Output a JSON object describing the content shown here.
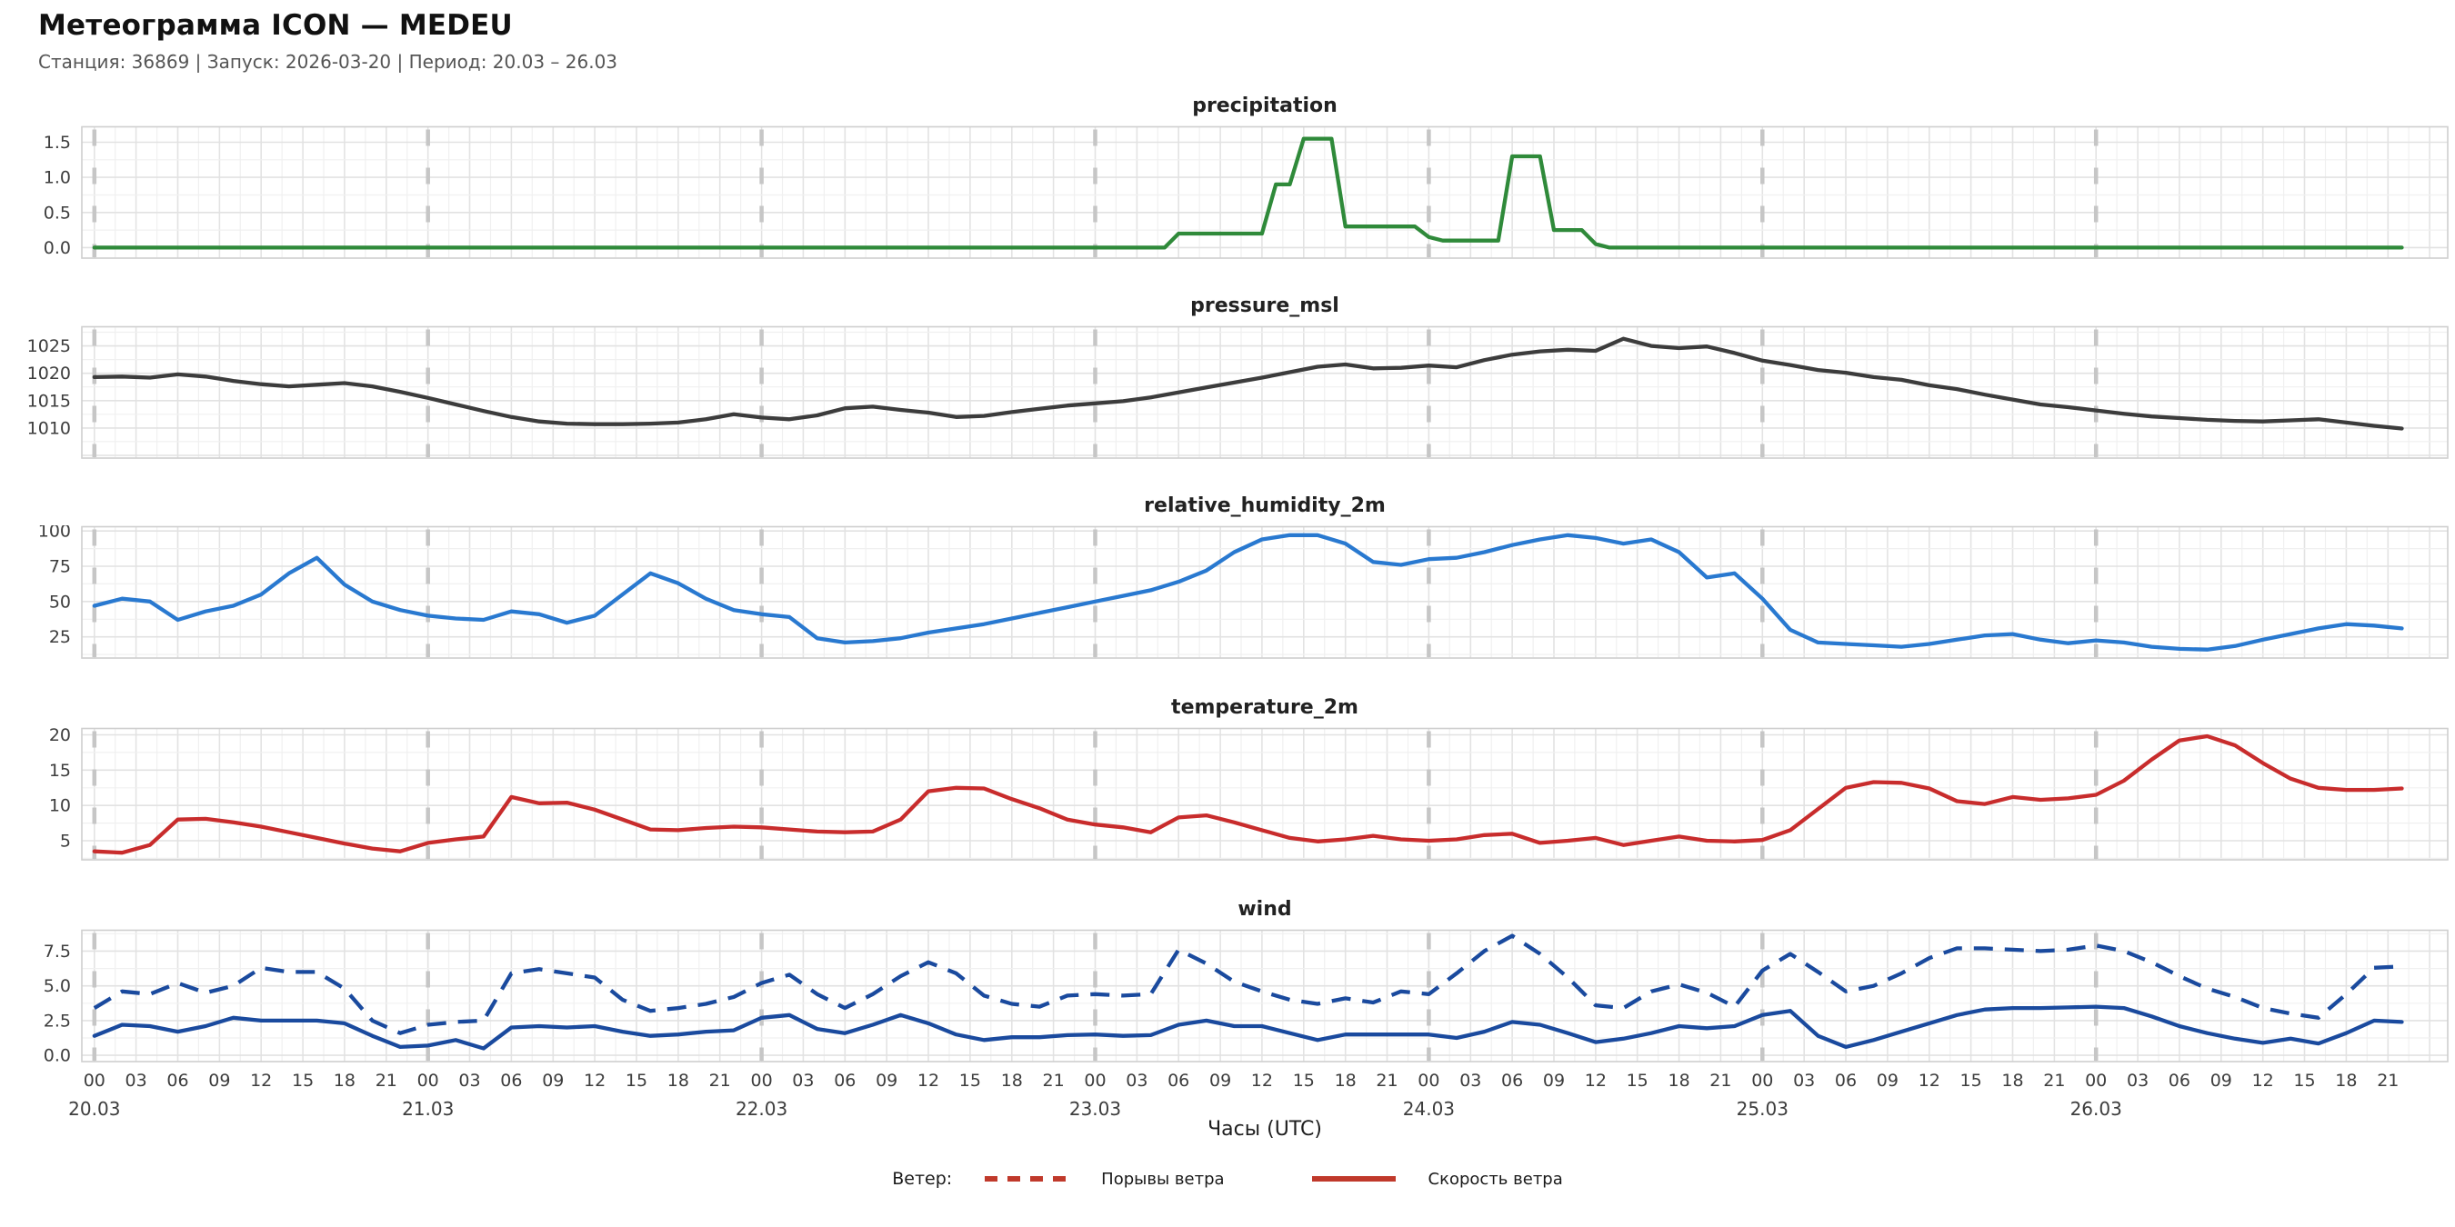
{
  "header": {
    "title": "Метеограмма ICON — MEDEU",
    "subtitle": "Станция: 36869  | Запуск: 2026-03-20  | Период: 20.03 – 26.03"
  },
  "legend": {
    "label": "Ветер:",
    "items": [
      {
        "name": "Порывы ветра",
        "style": "dashed",
        "color": "#c0392b"
      },
      {
        "name": "Скорость ветра",
        "style": "solid",
        "color": "#c0392b"
      }
    ]
  },
  "chart_data": {
    "type": "line",
    "xlabel": "Часы (UTC)",
    "grid": true,
    "xaxis": {
      "hour_labels": [
        "00",
        "03",
        "06",
        "09",
        "12",
        "15",
        "18",
        "21"
      ],
      "day_labels": [
        "20.03",
        "21.03",
        "22.03",
        "23.03",
        "24.03",
        "25.03",
        "26.03"
      ],
      "tick_step_hours": 3,
      "day_line_color": "#c6c6c6"
    },
    "panels": [
      {
        "id": "precipitation",
        "title": "precipitation",
        "ticks": [
          0.0,
          0.5,
          1.0,
          1.5
        ],
        "tick_labels": [
          "0.0",
          "0.5",
          "1.0",
          "1.5"
        ],
        "ylim": [
          -0.15,
          1.72
        ],
        "series": [
          {
            "name": "precipitation",
            "style": "solid",
            "color": "#2f8a3a",
            "step_hours": 1,
            "values": [
              0,
              0,
              0,
              0,
              0,
              0,
              0,
              0,
              0,
              0,
              0,
              0,
              0,
              0,
              0,
              0,
              0,
              0,
              0,
              0,
              0,
              0,
              0,
              0,
              0,
              0,
              0,
              0,
              0,
              0,
              0,
              0,
              0,
              0,
              0,
              0,
              0,
              0,
              0,
              0,
              0,
              0,
              0,
              0,
              0,
              0,
              0,
              0,
              0,
              0,
              0,
              0,
              0,
              0,
              0,
              0,
              0,
              0,
              0,
              0,
              0,
              0,
              0,
              0,
              0,
              0,
              0,
              0,
              0,
              0,
              0,
              0,
              0,
              0,
              0,
              0,
              0,
              0,
              0.2,
              0.2,
              0.2,
              0.2,
              0.2,
              0.2,
              0.2,
              0.9,
              0.9,
              1.55,
              1.55,
              1.55,
              0.3,
              0.3,
              0.3,
              0.3,
              0.3,
              0.3,
              0.15,
              0.1,
              0.1,
              0.1,
              0.1,
              0.1,
              1.3,
              1.3,
              1.3,
              0.25,
              0.25,
              0.25,
              0.05,
              0,
              0,
              0,
              0,
              0,
              0,
              0,
              0,
              0,
              0,
              0,
              0,
              0,
              0,
              0,
              0,
              0,
              0,
              0,
              0,
              0,
              0,
              0,
              0,
              0,
              0,
              0,
              0,
              0,
              0,
              0,
              0,
              0,
              0,
              0,
              0,
              0,
              0,
              0,
              0,
              0,
              0,
              0,
              0,
              0,
              0,
              0,
              0,
              0,
              0,
              0,
              0,
              0,
              0,
              0,
              0,
              0,
              0
            ]
          }
        ]
      },
      {
        "id": "pressure_msl",
        "title": "pressure_msl",
        "ticks": [
          1010,
          1015,
          1020,
          1025
        ],
        "tick_labels": [
          "1010",
          "1015",
          "1020",
          "1025"
        ],
        "ylim": [
          1004.5,
          1028.5
        ],
        "series": [
          {
            "name": "pressure_msl",
            "style": "solid",
            "color": "#3c3c3c",
            "step_hours": 2,
            "values": [
              1019.3,
              1019.4,
              1019.2,
              1019.8,
              1019.4,
              1018.6,
              1018.0,
              1017.6,
              1017.9,
              1018.2,
              1017.6,
              1016.6,
              1015.5,
              1014.3,
              1013.1,
              1012.0,
              1011.2,
              1010.8,
              1010.7,
              1010.7,
              1010.8,
              1011.0,
              1011.6,
              1012.5,
              1011.9,
              1011.6,
              1012.3,
              1013.6,
              1013.9,
              1013.3,
              1012.8,
              1012.0,
              1012.2,
              1012.9,
              1013.5,
              1014.1,
              1014.5,
              1014.9,
              1015.6,
              1016.5,
              1017.4,
              1018.3,
              1019.2,
              1020.2,
              1021.2,
              1021.6,
              1020.9,
              1021.0,
              1021.4,
              1021.1,
              1022.4,
              1023.4,
              1024.0,
              1024.3,
              1024.1,
              1026.3,
              1025.0,
              1024.6,
              1024.9,
              1023.7,
              1022.3,
              1021.5,
              1020.6,
              1020.1,
              1019.3,
              1018.8,
              1017.8,
              1017.1,
              1016.1,
              1015.2,
              1014.3,
              1013.8,
              1013.2,
              1012.6,
              1012.1,
              1011.8,
              1011.5,
              1011.3,
              1011.2,
              1011.4,
              1011.6,
              1011.0,
              1010.4,
              1009.9
            ]
          }
        ]
      },
      {
        "id": "relative_humidity_2m",
        "title": "relative_humidity_2m",
        "ticks": [
          25,
          50,
          75,
          100
        ],
        "tick_labels": [
          "25",
          "50",
          "75",
          "100"
        ],
        "ylim": [
          10,
          103
        ],
        "series": [
          {
            "name": "relative_humidity_2m",
            "style": "solid",
            "color": "#2979d0",
            "step_hours": 2,
            "values": [
              47,
              52,
              50,
              37,
              43,
              47,
              55,
              70,
              81,
              62,
              50,
              44,
              40,
              38,
              37,
              43,
              41,
              35,
              40,
              55,
              70,
              63,
              52,
              44,
              41,
              39,
              24,
              21,
              22,
              24,
              28,
              31,
              34,
              38,
              42,
              46,
              50,
              54,
              58,
              64,
              72,
              85,
              94,
              97,
              97,
              91,
              78,
              76,
              80,
              81,
              85,
              90,
              94,
              97,
              95,
              91,
              94,
              85,
              67,
              70,
              52,
              30,
              21,
              20,
              19,
              18,
              20,
              23,
              26,
              27,
              23,
              20.5,
              22.5,
              21,
              18,
              16.5,
              16,
              18.5,
              23,
              27,
              31,
              34,
              33,
              31
            ]
          }
        ]
      },
      {
        "id": "temperature_2m",
        "title": "temperature_2m",
        "ticks": [
          5,
          10,
          15,
          20
        ],
        "tick_labels": [
          "5",
          "10",
          "15",
          "20"
        ],
        "ylim": [
          2.3,
          20.9
        ],
        "series": [
          {
            "name": "temperature_2m",
            "style": "solid",
            "color": "#c82c2c",
            "step_hours": 2,
            "values": [
              3.5,
              3.3,
              4.4,
              8.0,
              8.1,
              7.6,
              7.0,
              6.2,
              5.4,
              4.6,
              3.9,
              3.5,
              4.7,
              5.2,
              5.6,
              11.2,
              10.3,
              10.4,
              9.4,
              8.0,
              6.6,
              6.5,
              6.8,
              7.0,
              6.9,
              6.6,
              6.3,
              6.2,
              6.3,
              8.0,
              12.0,
              12.5,
              12.4,
              10.9,
              9.6,
              8.0,
              7.3,
              6.9,
              6.2,
              8.3,
              8.6,
              7.6,
              6.5,
              5.4,
              4.9,
              5.2,
              5.7,
              5.2,
              5.0,
              5.2,
              5.8,
              6.0,
              4.7,
              5.0,
              5.4,
              4.4,
              5.0,
              5.6,
              5.0,
              4.9,
              5.1,
              6.5,
              9.5,
              12.5,
              13.3,
              13.2,
              12.4,
              10.6,
              10.2,
              11.2,
              10.8,
              11.0,
              11.5,
              13.5,
              16.5,
              19.2,
              19.8,
              18.5,
              16.0,
              13.8,
              12.5,
              12.2,
              12.2,
              12.4
            ]
          }
        ]
      },
      {
        "id": "wind",
        "title": "wind",
        "ticks": [
          0.0,
          2.5,
          5.0,
          7.5
        ],
        "tick_labels": [
          "0.0",
          "2.5",
          "5.0",
          "7.5"
        ],
        "ylim": [
          -0.45,
          9.0
        ],
        "series": [
          {
            "name": "Порывы ветра",
            "style": "dashed",
            "color": "#1a4a9e",
            "step_hours": 2,
            "values": [
              3.4,
              4.6,
              4.4,
              5.2,
              4.5,
              5.0,
              6.3,
              6.0,
              6.0,
              4.8,
              2.5,
              1.6,
              2.2,
              2.4,
              2.5,
              5.9,
              6.2,
              5.9,
              5.6,
              4.0,
              3.2,
              3.4,
              3.7,
              4.2,
              5.2,
              5.8,
              4.4,
              3.4,
              4.4,
              5.7,
              6.7,
              5.9,
              4.3,
              3.7,
              3.5,
              4.3,
              4.4,
              4.3,
              4.4,
              7.6,
              6.6,
              5.3,
              4.6,
              4.0,
              3.7,
              4.1,
              3.8,
              4.6,
              4.4,
              5.9,
              7.5,
              8.6,
              7.3,
              5.6,
              3.6,
              3.4,
              4.6,
              5.1,
              4.5,
              3.5,
              6.1,
              7.3,
              6.0,
              4.6,
              5.0,
              5.9,
              7.0,
              7.7,
              7.7,
              7.6,
              7.5,
              7.6,
              7.9,
              7.5,
              6.7,
              5.7,
              4.8,
              4.2,
              3.4,
              3.0,
              2.7,
              4.4,
              6.3,
              6.4
            ]
          },
          {
            "name": "Скорость ветра",
            "style": "solid",
            "color": "#1a4a9e",
            "step_hours": 2,
            "values": [
              1.4,
              2.2,
              2.1,
              1.7,
              2.1,
              2.7,
              2.5,
              2.5,
              2.5,
              2.3,
              1.4,
              0.6,
              0.7,
              1.1,
              0.5,
              2.0,
              2.1,
              2.0,
              2.1,
              1.7,
              1.4,
              1.5,
              1.7,
              1.8,
              2.7,
              2.9,
              1.9,
              1.6,
              2.2,
              2.9,
              2.3,
              1.5,
              1.1,
              1.3,
              1.3,
              1.45,
              1.5,
              1.4,
              1.45,
              2.2,
              2.5,
              2.1,
              2.1,
              1.6,
              1.1,
              1.5,
              1.5,
              1.5,
              1.5,
              1.25,
              1.7,
              2.4,
              2.2,
              1.6,
              0.95,
              1.2,
              1.6,
              2.1,
              1.95,
              2.1,
              2.9,
              3.2,
              1.4,
              0.6,
              1.1,
              1.7,
              2.3,
              2.9,
              3.3,
              3.4,
              3.4,
              3.45,
              3.5,
              3.4,
              2.8,
              2.1,
              1.6,
              1.2,
              0.9,
              1.2,
              0.85,
              1.6,
              2.5,
              2.4
            ]
          }
        ]
      }
    ]
  }
}
